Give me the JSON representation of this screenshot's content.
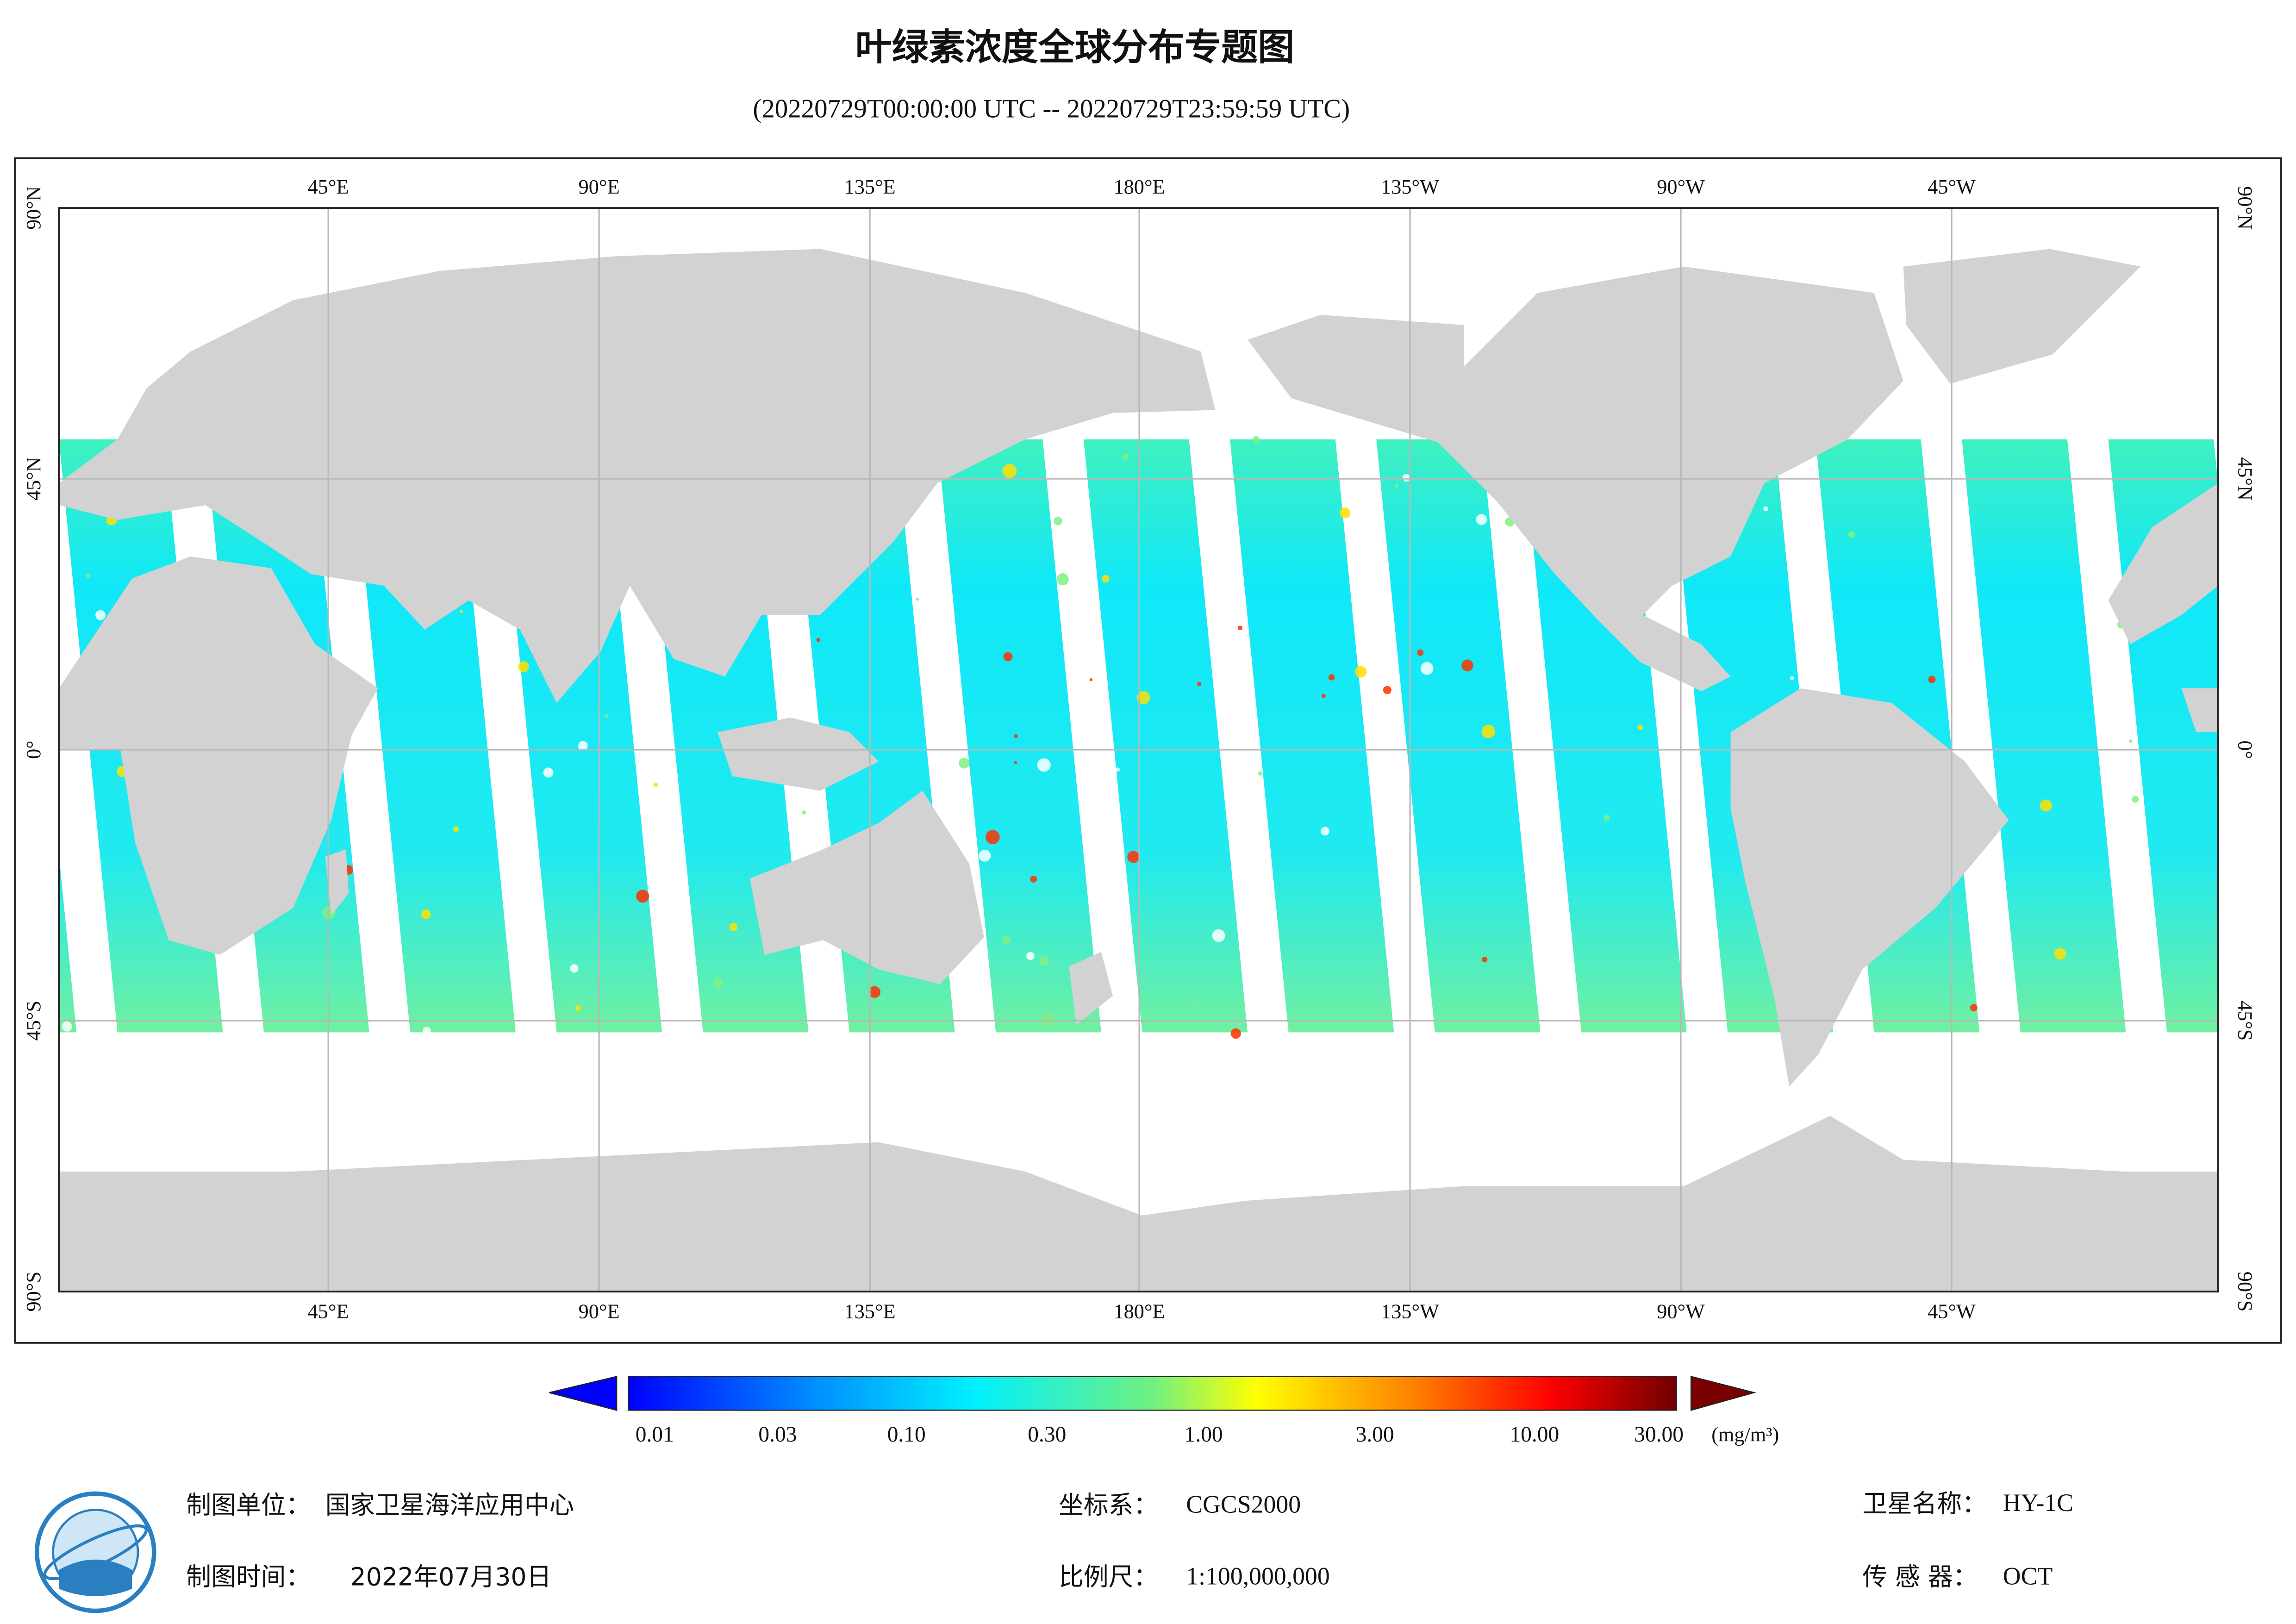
{
  "title": "叶绿素浓度全球分布专题图",
  "subtitle": "(20220729T00:00:00 UTC -- 20220729T23:59:59 UTC)",
  "map": {
    "lon_labels": [
      "45°E",
      "90°E",
      "135°E",
      "180°E",
      "135°W",
      "90°W",
      "45°W"
    ],
    "lat_labels": [
      "90°N",
      "45°N",
      "0°",
      "45°S",
      "90°S"
    ]
  },
  "colorbar": {
    "ticks": [
      "0.01",
      "0.03",
      "0.10",
      "0.30",
      "1.00",
      "3.00",
      "10.00",
      "30.00"
    ],
    "unit": "(mg/m³)"
  },
  "footer": {
    "items": [
      {
        "label": "制图单位：",
        "value": "国家卫星海洋应用中心"
      },
      {
        "label": "制图时间：",
        "value": "2022年07月30日"
      },
      {
        "label": "坐标系：",
        "value": "CGCS2000"
      },
      {
        "label": "比例尺：",
        "value": "1:100,000,000"
      },
      {
        "label": "卫星名称：",
        "value": "HY-1C"
      },
      {
        "label": "传 感 器：",
        "value": "OCT"
      }
    ]
  }
}
